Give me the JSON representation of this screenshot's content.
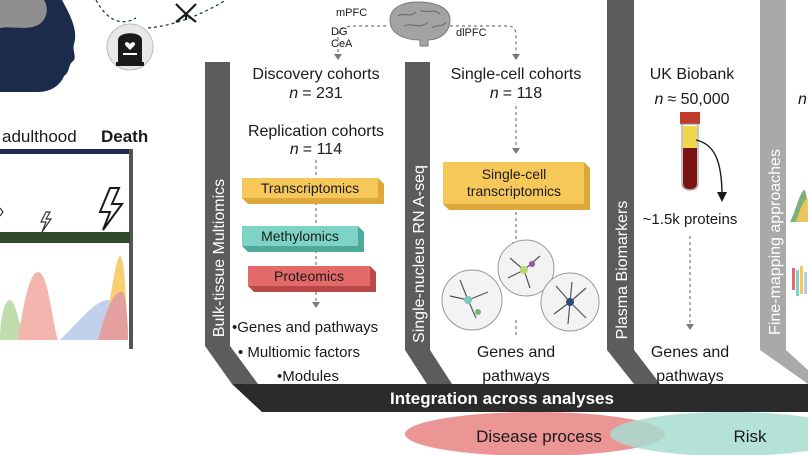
{
  "brain_regions": {
    "left": [
      "mPFC",
      "DG",
      "CeA"
    ],
    "right": "dlPFC"
  },
  "timeline": {
    "label": "adulthood",
    "end_label": "Death"
  },
  "lanes": {
    "bulk": {
      "label": "Bulk-tissue Multiomics",
      "discovery_title": "Discovery cohorts",
      "discovery_n_symbol": "n",
      "discovery_n_value": "= 231",
      "replication_title": "Replication cohorts",
      "replication_n_symbol": "n",
      "replication_n_value": "= 114",
      "omics": [
        "Transcriptomics",
        "Methylomics",
        "Proteomics"
      ],
      "outputs": [
        "•Genes and pathways",
        "• Multiomic factors",
        "•Modules"
      ]
    },
    "single_cell": {
      "label": "Single-nucleus RN A-seq",
      "title": "Single-cell cohorts",
      "n_symbol": "n",
      "n_value": "= 118",
      "box_line1": "Single-cell",
      "box_line2": "transcriptomics",
      "output_line1": "Genes and",
      "output_line2": "pathways"
    },
    "plasma": {
      "label": "Plasma Biomarkers",
      "title": "UK Biobank",
      "n_symbol": "n",
      "n_value": "≈ 50,000",
      "proteins": "~1.5k proteins",
      "output_line1": "Genes and",
      "output_line2": "pathways"
    },
    "finemap": {
      "label": "Fine-mapping approaches",
      "n_symbol": "n"
    }
  },
  "integration_label": "Integration across analyses",
  "outcomes": {
    "disease": "Disease process",
    "risk": "Risk"
  },
  "colors": {
    "band": "#2b2b2b",
    "lane": "#5c5c5c",
    "lane_light": "#aaaaaa",
    "transcriptomics": "#f6c85a",
    "methylomics": "#7dd3c5",
    "proteomics": "#e46a6a",
    "disease": "#e98a8a",
    "risk": "#a8ddd0",
    "timeline_bar": "#2f4a2a",
    "head": "#1d2b4a"
  }
}
